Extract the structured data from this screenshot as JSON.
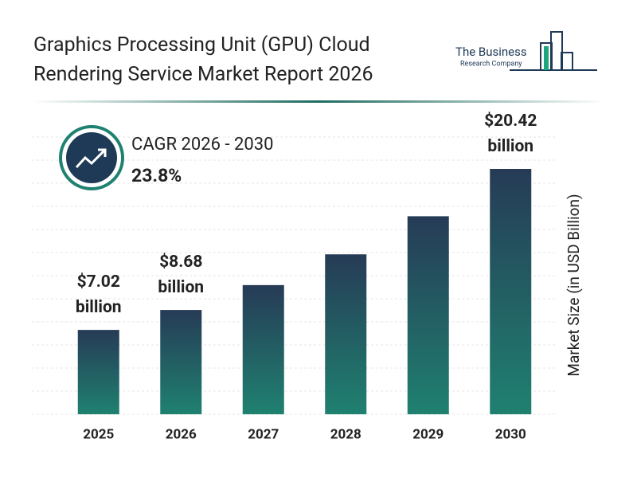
{
  "chart_data": {
    "type": "bar",
    "title": "Graphics Processing Unit (GPU) Cloud Rendering Service Market Report 2026",
    "logo": {
      "line1": "The Business",
      "line2": "Research Company"
    },
    "cagr": {
      "label": "CAGR 2026 - 2030",
      "value": "23.8%"
    },
    "y_axis_label": "Market Size (in USD Billion)",
    "categories": [
      "2025",
      "2026",
      "2027",
      "2028",
      "2029",
      "2030"
    ],
    "values": [
      7.02,
      8.68,
      10.75,
      13.31,
      16.48,
      20.42
    ],
    "value_labels": [
      "$7.02 billion",
      "$8.68 billion",
      null,
      null,
      null,
      "$20.42 billion"
    ],
    "color": [
      "#263b56",
      "#1f8170"
    ]
  }
}
